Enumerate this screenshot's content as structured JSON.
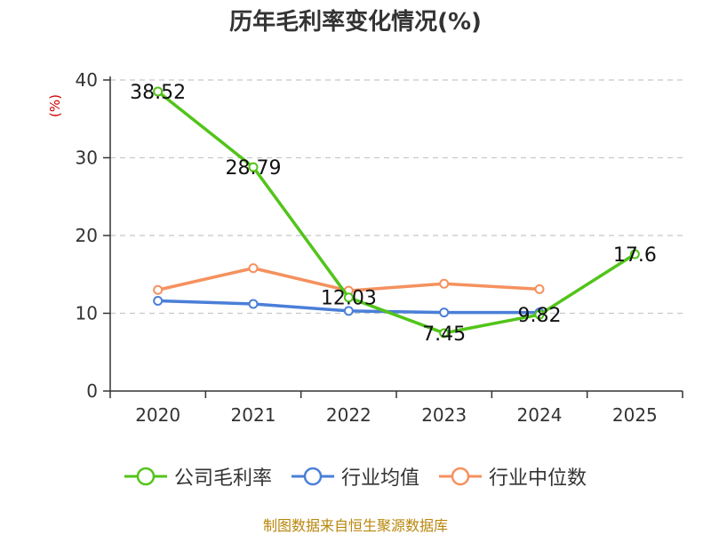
{
  "chart_data": {
    "type": "line",
    "title": "历年毛利率变化情况(%)",
    "ylabel": "(%)",
    "categories": [
      "2020",
      "2021",
      "2022",
      "2023",
      "2024",
      "2025"
    ],
    "ylim": [
      0,
      40
    ],
    "yticks": [
      0,
      10,
      20,
      30,
      40
    ],
    "grid": true,
    "legend_position": "bottom",
    "series": [
      {
        "name": "公司毛利率",
        "color": "#52c41a",
        "values": [
          38.52,
          28.79,
          12.03,
          7.45,
          9.82,
          17.6
        ],
        "labels": [
          "38.52",
          "28.79",
          "12.03",
          "7.45",
          "9.82",
          "17.6"
        ]
      },
      {
        "name": "行业均值",
        "color": "#4a7fd8",
        "values": [
          11.6,
          11.2,
          10.3,
          10.1,
          10.1,
          null
        ]
      },
      {
        "name": "行业中位数",
        "color": "#f5915e",
        "values": [
          13.0,
          15.8,
          12.9,
          13.8,
          13.1,
          null
        ]
      }
    ]
  },
  "source": "制图数据来自恒生聚源数据库"
}
